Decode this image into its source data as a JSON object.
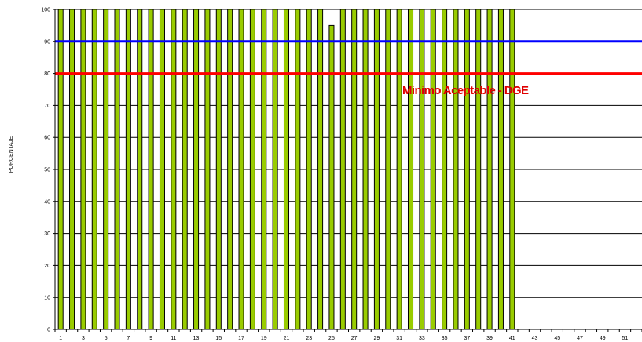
{
  "chart_data": {
    "type": "bar",
    "ylabel": "PORCENTAJE",
    "xlabel": "",
    "ylim": [
      0,
      100
    ],
    "yticks": [
      0,
      10,
      20,
      30,
      40,
      50,
      60,
      70,
      80,
      90,
      100
    ],
    "grid": true,
    "categories": [
      1,
      2,
      3,
      4,
      5,
      6,
      7,
      8,
      9,
      10,
      11,
      12,
      13,
      14,
      15,
      16,
      17,
      18,
      19,
      20,
      21,
      22,
      23,
      24,
      25,
      26,
      27,
      28,
      29,
      30,
      31,
      32,
      33,
      34,
      35,
      36,
      37,
      38,
      39,
      40,
      41,
      42,
      43,
      44,
      45,
      46,
      47,
      48,
      49,
      50,
      51,
      52
    ],
    "tick_labels": [
      "1",
      "3",
      "5",
      "7",
      "9",
      "11",
      "13",
      "15",
      "17",
      "19",
      "21",
      "23",
      "25",
      "27",
      "29",
      "31",
      "33",
      "35",
      "37",
      "39",
      "41",
      "43",
      "45",
      "47",
      "49",
      "51"
    ],
    "series": [
      {
        "color": "#99cc00",
        "values": [
          100,
          100,
          100,
          100,
          100,
          100,
          100,
          100,
          100,
          100,
          100,
          100,
          100,
          100,
          100,
          100,
          100,
          100,
          100,
          100,
          100,
          100,
          100,
          100,
          95,
          100,
          100,
          100,
          100,
          100,
          100,
          100,
          100,
          100,
          100,
          100,
          100,
          100,
          100,
          100,
          100,
          0,
          0,
          0,
          0,
          0,
          0,
          0,
          0,
          0,
          0,
          0
        ]
      }
    ],
    "reference_lines": [
      {
        "value": 90,
        "color": "#0000ff"
      },
      {
        "value": 80,
        "color": "#ff0000"
      }
    ],
    "annotation": {
      "text": "Minimo Aceptable - DGE",
      "color": "#e00000"
    }
  }
}
